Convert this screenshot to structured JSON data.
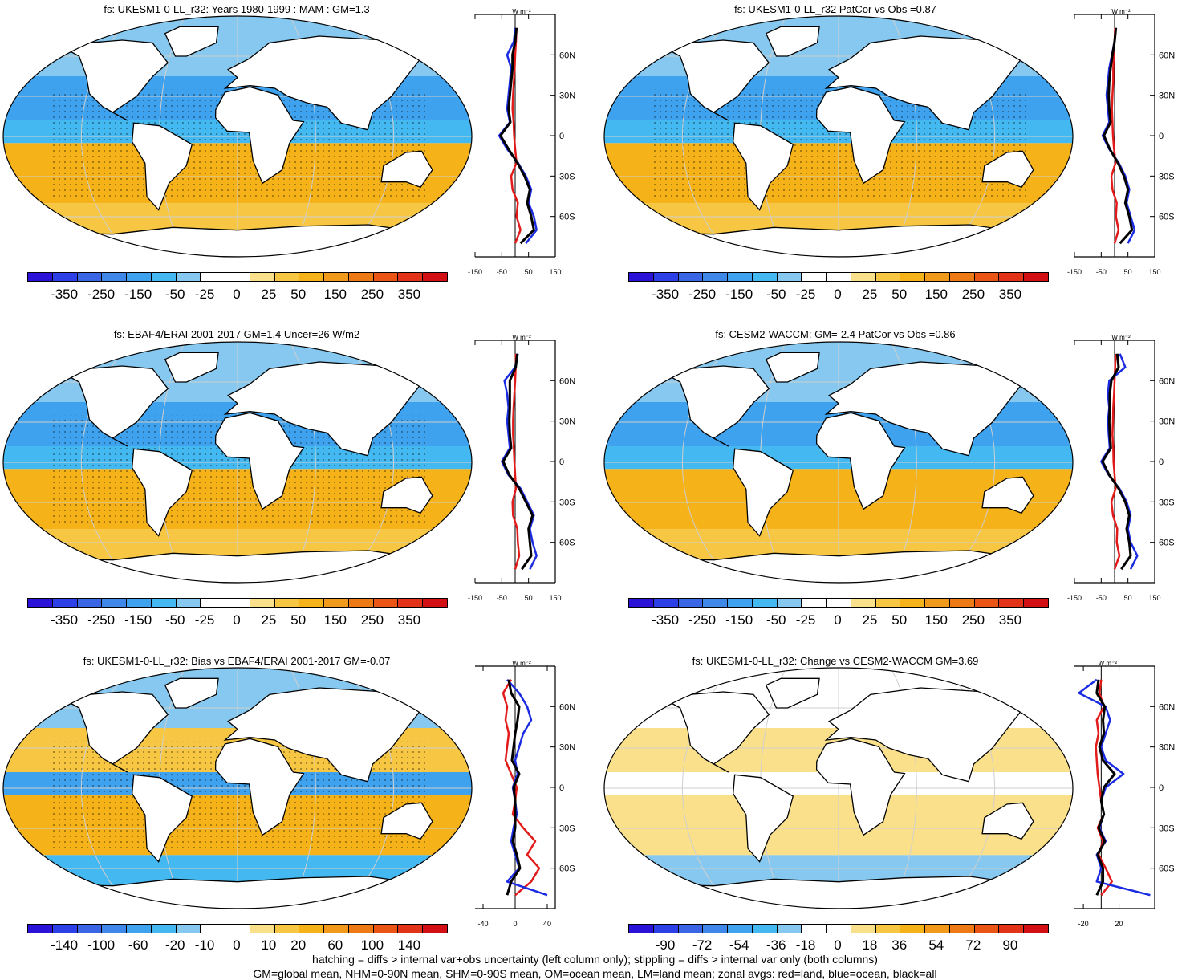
{
  "panels": [
    {
      "title": "fs: UKESM1-0-LL_r32: Years 1980-1999 : MAM : GM=1.3",
      "style": "model",
      "colorbar": {
        "labels": [
          "-350",
          "-250",
          "-150",
          "-50",
          "-25",
          "0",
          "25",
          "50",
          "150",
          "250",
          "350"
        ]
      },
      "zonal": {
        "unit_label": "W m⁻²",
        "x_ticks": [
          "-150",
          "-50",
          "50",
          "150"
        ],
        "xlim": [
          -150,
          150
        ],
        "lat_ticks": [
          "60N",
          "30N",
          "0",
          "30S",
          "60S"
        ],
        "series": [
          {
            "name": "land",
            "color": "#e21a1a",
            "lat": [
              80,
              70,
              60,
              50,
              40,
              30,
              20,
              10,
              0,
              -10,
              -20,
              -30,
              -40,
              -50,
              -60,
              -70,
              -80
            ],
            "values": [
              5,
              3,
              0,
              -2,
              -5,
              -8,
              -10,
              -6,
              -4,
              0,
              5,
              -15,
              -10,
              10,
              5,
              20,
              0
            ]
          },
          {
            "name": "ocean",
            "color": "#1a2be2",
            "lat": [
              80,
              70,
              60,
              50,
              40,
              30,
              20,
              10,
              0,
              -10,
              -20,
              -30,
              -40,
              -50,
              -60,
              -70,
              -80
            ],
            "values": [
              0,
              -5,
              -30,
              -15,
              -20,
              -25,
              -30,
              -20,
              -60,
              -30,
              10,
              40,
              60,
              50,
              70,
              80,
              40
            ]
          },
          {
            "name": "all",
            "color": "#000000",
            "lat": [
              80,
              70,
              60,
              50,
              40,
              30,
              20,
              10,
              0,
              -10,
              -20,
              -30,
              -40,
              -50,
              -60,
              -70,
              -80
            ],
            "values": [
              5,
              0,
              -10,
              -10,
              -15,
              -20,
              -25,
              -18,
              -55,
              -25,
              8,
              35,
              55,
              45,
              60,
              70,
              20
            ]
          }
        ]
      }
    },
    {
      "title": "fs: UKESM1-0-LL_r32 PatCor vs Obs =0.87",
      "style": "model",
      "colorbar": {
        "labels": [
          "-350",
          "-250",
          "-150",
          "-50",
          "-25",
          "0",
          "25",
          "50",
          "150",
          "250",
          "350"
        ]
      },
      "zonal": {
        "unit_label": "W m⁻²",
        "x_ticks": [
          "-150",
          "-50",
          "50",
          "150"
        ],
        "xlim": [
          -150,
          150
        ],
        "lat_ticks": [
          "60N",
          "30N",
          "0",
          "30S",
          "60S"
        ],
        "series": [
          {
            "name": "land",
            "color": "#e21a1a",
            "lat": [
              80,
              70,
              60,
              50,
              40,
              30,
              20,
              10,
              0,
              -10,
              -20,
              -30,
              -40,
              -50,
              -60,
              -70,
              -80
            ],
            "values": [
              2,
              0,
              -3,
              -5,
              -5,
              -8,
              -10,
              -8,
              -6,
              -2,
              4,
              -12,
              -8,
              8,
              5,
              15,
              0
            ]
          },
          {
            "name": "ocean",
            "color": "#1a2be2",
            "lat": [
              80,
              70,
              60,
              50,
              40,
              30,
              20,
              10,
              0,
              -10,
              -20,
              -30,
              -40,
              -50,
              -60,
              -70,
              -80
            ],
            "values": [
              5,
              0,
              -10,
              -20,
              -25,
              -30,
              -25,
              -20,
              -45,
              -20,
              15,
              40,
              55,
              45,
              60,
              75,
              50
            ]
          },
          {
            "name": "all",
            "color": "#000000",
            "lat": [
              80,
              70,
              60,
              50,
              40,
              30,
              20,
              10,
              0,
              -10,
              -20,
              -30,
              -40,
              -50,
              -60,
              -70,
              -80
            ],
            "values": [
              5,
              0,
              -8,
              -15,
              -20,
              -22,
              -20,
              -15,
              -40,
              -18,
              12,
              35,
              50,
              40,
              55,
              65,
              20
            ]
          }
        ]
      }
    },
    {
      "title": "fs: EBAF4/ERAI 2001-2017 GM=1.4 Uncer=26 W/m2",
      "style": "obs",
      "colorbar": {
        "labels": [
          "-350",
          "-250",
          "-150",
          "-50",
          "-25",
          "0",
          "25",
          "50",
          "150",
          "250",
          "350"
        ]
      },
      "zonal": {
        "unit_label": "W m⁻²",
        "x_ticks": [
          "-150",
          "-50",
          "50",
          "150"
        ],
        "xlim": [
          -150,
          150
        ],
        "lat_ticks": [
          "60N",
          "30N",
          "0",
          "30S",
          "60S"
        ],
        "series": [
          {
            "name": "land",
            "color": "#e21a1a",
            "lat": [
              80,
              70,
              60,
              50,
              40,
              30,
              20,
              10,
              0,
              -10,
              -20,
              -30,
              -40,
              -50,
              -60,
              -70,
              -80
            ],
            "values": [
              3,
              2,
              0,
              -3,
              -6,
              -8,
              -8,
              -5,
              -3,
              0,
              3,
              -10,
              -8,
              8,
              10,
              15,
              0
            ]
          },
          {
            "name": "ocean",
            "color": "#1a2be2",
            "lat": [
              80,
              70,
              60,
              50,
              40,
              30,
              20,
              10,
              0,
              -10,
              -20,
              -30,
              -40,
              -50,
              -60,
              -70,
              -80
            ],
            "values": [
              10,
              0,
              -40,
              -30,
              -25,
              -30,
              -25,
              -20,
              -50,
              -25,
              20,
              45,
              70,
              55,
              65,
              80,
              55
            ]
          },
          {
            "name": "all",
            "color": "#000000",
            "lat": [
              80,
              70,
              60,
              50,
              40,
              30,
              20,
              10,
              0,
              -10,
              -20,
              -30,
              -40,
              -50,
              -60,
              -70,
              -80
            ],
            "values": [
              8,
              2,
              -20,
              -20,
              -20,
              -22,
              -20,
              -15,
              -45,
              -22,
              15,
              40,
              65,
              50,
              55,
              60,
              25
            ]
          }
        ]
      }
    },
    {
      "title": "fs: CESM2-WACCM: GM=-2.4 PatCor vs Obs =0.86",
      "style": "model2",
      "colorbar": {
        "labels": [
          "-350",
          "-250",
          "-150",
          "-50",
          "-25",
          "0",
          "25",
          "50",
          "150",
          "250",
          "350"
        ]
      },
      "zonal": {
        "unit_label": "W m⁻²",
        "x_ticks": [
          "-150",
          "-50",
          "50",
          "150"
        ],
        "xlim": [
          -150,
          150
        ],
        "lat_ticks": [
          "60N",
          "30N",
          "0",
          "30S",
          "60S"
        ],
        "series": [
          {
            "name": "land",
            "color": "#e21a1a",
            "lat": [
              80,
              70,
              60,
              50,
              40,
              30,
              20,
              10,
              0,
              -10,
              -20,
              -30,
              -40,
              -50,
              -60,
              -70,
              -80
            ],
            "values": [
              4,
              2,
              0,
              -2,
              -5,
              -6,
              -8,
              -5,
              -4,
              0,
              4,
              -12,
              -6,
              10,
              8,
              18,
              0
            ]
          },
          {
            "name": "ocean",
            "color": "#1a2be2",
            "lat": [
              80,
              70,
              60,
              50,
              40,
              30,
              20,
              10,
              0,
              -10,
              -20,
              -30,
              -40,
              -50,
              -60,
              -70,
              -80
            ],
            "values": [
              20,
              40,
              -20,
              -25,
              -20,
              -25,
              -22,
              -18,
              -50,
              -22,
              18,
              45,
              60,
              50,
              60,
              85,
              60
            ]
          },
          {
            "name": "all",
            "color": "#000000",
            "lat": [
              80,
              70,
              60,
              50,
              40,
              30,
              20,
              10,
              0,
              -10,
              -20,
              -30,
              -40,
              -50,
              -60,
              -70,
              -80
            ],
            "values": [
              10,
              15,
              -12,
              -18,
              -18,
              -20,
              -18,
              -14,
              -45,
              -20,
              15,
              40,
              55,
              45,
              55,
              60,
              25
            ]
          }
        ]
      }
    },
    {
      "title": "fs: UKESM1-0-LL_r32: Bias vs EBAF4/ERAI 2001-2017 GM=-0.07",
      "style": "bias",
      "colorbar": {
        "labels": [
          "-140",
          "-100",
          "-60",
          "-20",
          "-10",
          "0",
          "10",
          "20",
          "60",
          "100",
          "140"
        ]
      },
      "zonal": {
        "unit_label": "W m⁻²",
        "x_ticks": [
          "-40",
          "0",
          "40"
        ],
        "xlim": [
          -50,
          50
        ],
        "lat_ticks": [
          "60N",
          "30N",
          "0",
          "30S",
          "60S"
        ],
        "series": [
          {
            "name": "land",
            "color": "#e21a1a",
            "lat": [
              80,
              70,
              60,
              50,
              40,
              30,
              20,
              10,
              0,
              -10,
              -20,
              -30,
              -40,
              -50,
              -60,
              -70,
              -80
            ],
            "values": [
              -5,
              -15,
              -10,
              -12,
              -8,
              -10,
              -12,
              -5,
              2,
              0,
              -3,
              10,
              25,
              15,
              30,
              20,
              0
            ]
          },
          {
            "name": "ocean",
            "color": "#1a2be2",
            "lat": [
              80,
              70,
              60,
              50,
              40,
              30,
              20,
              10,
              0,
              -10,
              -20,
              -30,
              -40,
              -50,
              -60,
              -70,
              -80
            ],
            "values": [
              -10,
              5,
              15,
              20,
              10,
              5,
              0,
              3,
              -3,
              0,
              2,
              -2,
              -5,
              0,
              5,
              -10,
              40
            ]
          },
          {
            "name": "all",
            "color": "#000000",
            "lat": [
              80,
              70,
              60,
              50,
              40,
              30,
              20,
              10,
              0,
              -10,
              -20,
              -30,
              -40,
              -50,
              -60,
              -70,
              -80
            ],
            "values": [
              -8,
              -5,
              5,
              3,
              0,
              -2,
              -4,
              5,
              -2,
              0,
              0,
              0,
              -3,
              2,
              6,
              -5,
              -10
            ]
          }
        ]
      }
    },
    {
      "title": "fs: UKESM1-0-LL_r32: Change vs CESM2-WACCM GM=3.69",
      "style": "change",
      "colorbar": {
        "labels": [
          "-90",
          "-72",
          "-54",
          "-36",
          "-18",
          "0",
          "18",
          "36",
          "54",
          "72",
          "90"
        ]
      },
      "zonal": {
        "unit_label": "W m⁻²",
        "x_ticks": [
          "-20",
          "20"
        ],
        "xlim": [
          -30,
          60
        ],
        "lat_ticks": [
          "60N",
          "30N",
          "0",
          "30S",
          "60S"
        ],
        "series": [
          {
            "name": "land",
            "color": "#e21a1a",
            "lat": [
              80,
              70,
              60,
              50,
              40,
              30,
              20,
              10,
              0,
              -10,
              -20,
              -30,
              -40,
              -50,
              -60,
              -70,
              -80
            ],
            "values": [
              0,
              -2,
              3,
              -5,
              -3,
              -6,
              -5,
              -4,
              -2,
              0,
              3,
              -4,
              2,
              -3,
              5,
              12,
              0
            ]
          },
          {
            "name": "ocean",
            "color": "#1a2be2",
            "lat": [
              80,
              70,
              60,
              50,
              40,
              30,
              20,
              10,
              0,
              -10,
              -20,
              -30,
              -40,
              -50,
              -60,
              -70,
              -80
            ],
            "values": [
              -5,
              -25,
              5,
              10,
              5,
              0,
              5,
              25,
              5,
              0,
              3,
              -2,
              5,
              -5,
              0,
              -5,
              55
            ]
          },
          {
            "name": "all",
            "color": "#000000",
            "lat": [
              80,
              70,
              60,
              50,
              40,
              30,
              20,
              10,
              0,
              -10,
              -20,
              -30,
              -40,
              -50,
              -60,
              -70,
              -80
            ],
            "values": [
              -3,
              -5,
              4,
              2,
              3,
              -2,
              2,
              15,
              3,
              0,
              3,
              -3,
              4,
              -4,
              2,
              2,
              -5
            ]
          }
        ]
      }
    }
  ],
  "colorscale": [
    "#2a12d9",
    "#2d3fe6",
    "#3a66e6",
    "#3f88ea",
    "#3ea2ee",
    "#44b8f0",
    "#86c8ef",
    "#ffffff",
    "#ffffff",
    "#fae08a",
    "#f7c744",
    "#f5b219",
    "#f1991a",
    "#ee7a16",
    "#ea5516",
    "#e23218",
    "#d10f14"
  ],
  "footer": {
    "line1": "hatching = diffs > internal var+obs uncertainty (left column only); stippling = diffs > internal var only (both columns)",
    "line2": "GM=global mean, NHM=0-90N mean, SHM=0-90S mean, OM=ocean mean, LM=land mean; zonal avgs: red=land, blue=ocean, black=all"
  }
}
